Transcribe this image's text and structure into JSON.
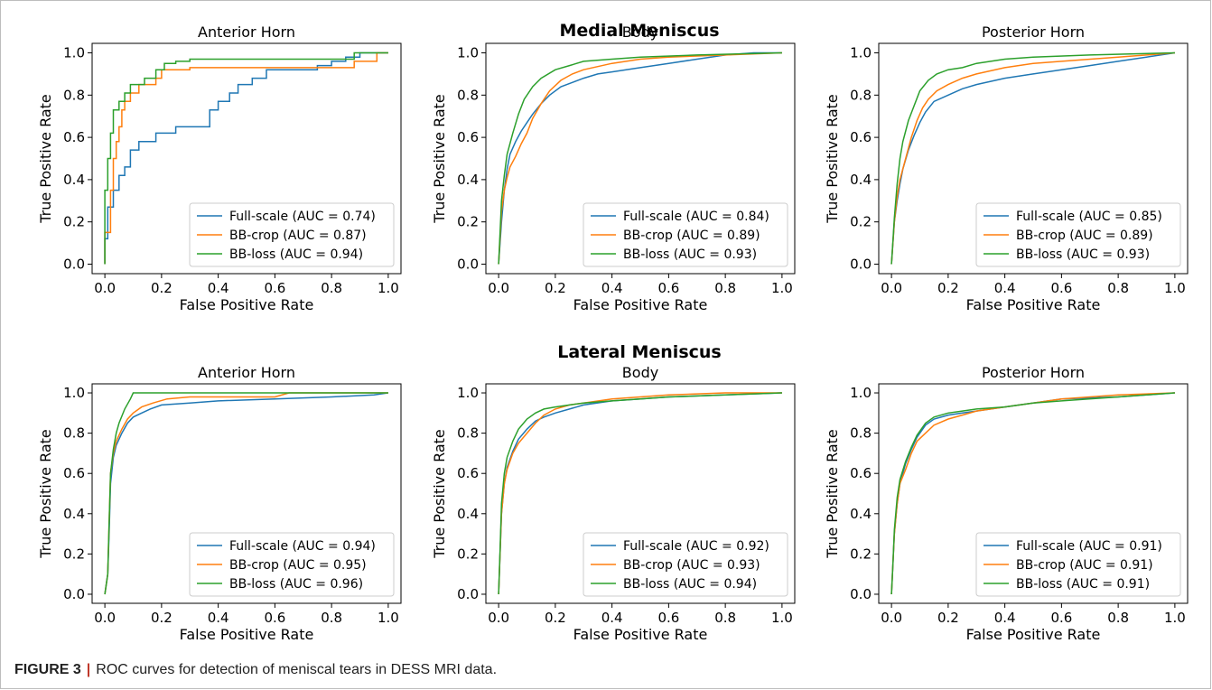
{
  "caption": {
    "label": "FIGURE 3",
    "separator": "|",
    "text": "ROC curves for detection of meniscal tears in DESS MRI data."
  },
  "colors": {
    "full": "#1f77b4",
    "crop": "#ff7f0e",
    "loss": "#2ca02c"
  },
  "chart_data": [
    {
      "group_title": "Medial Meniscus",
      "title": "Anterior Horn",
      "type": "line",
      "xlabel": "False Positive Rate",
      "ylabel": "True Positive Rate",
      "xlim": [
        0,
        1
      ],
      "ylim": [
        0,
        1
      ],
      "grid": false,
      "legend": "lower-right",
      "xticks": [
        "0.0",
        "0.2",
        "0.4",
        "0.6",
        "0.8",
        "1.0"
      ],
      "yticks": [
        "0.0",
        "0.2",
        "0.4",
        "0.6",
        "0.8",
        "1.0"
      ],
      "series": [
        {
          "name": "Full-scale (AUC = 0.74)",
          "color_key": "full",
          "x": [
            0,
            0,
            0.01,
            0.01,
            0.03,
            0.03,
            0.05,
            0.05,
            0.07,
            0.07,
            0.09,
            0.09,
            0.12,
            0.12,
            0.18,
            0.18,
            0.25,
            0.25,
            0.37,
            0.37,
            0.4,
            0.4,
            0.44,
            0.44,
            0.47,
            0.47,
            0.52,
            0.52,
            0.57,
            0.57,
            0.75,
            0.75,
            0.8,
            0.8,
            0.85,
            0.85,
            0.9,
            0.9,
            0.96,
            1.0
          ],
          "y": [
            0,
            0.12,
            0.12,
            0.27,
            0.27,
            0.35,
            0.35,
            0.42,
            0.42,
            0.46,
            0.46,
            0.54,
            0.54,
            0.58,
            0.58,
            0.62,
            0.62,
            0.65,
            0.65,
            0.73,
            0.73,
            0.77,
            0.77,
            0.81,
            0.81,
            0.85,
            0.85,
            0.88,
            0.88,
            0.92,
            0.92,
            0.94,
            0.94,
            0.96,
            0.96,
            0.98,
            0.98,
            1.0,
            1.0,
            1.0
          ]
        },
        {
          "name": "BB-crop (AUC = 0.87)",
          "color_key": "crop",
          "x": [
            0,
            0,
            0.02,
            0.02,
            0.03,
            0.03,
            0.04,
            0.04,
            0.05,
            0.05,
            0.06,
            0.06,
            0.07,
            0.07,
            0.09,
            0.09,
            0.12,
            0.12,
            0.18,
            0.18,
            0.2,
            0.2,
            0.3,
            0.3,
            0.88,
            0.88,
            0.96,
            0.96,
            1.0
          ],
          "y": [
            0,
            0.15,
            0.15,
            0.35,
            0.35,
            0.5,
            0.5,
            0.58,
            0.58,
            0.65,
            0.65,
            0.73,
            0.73,
            0.77,
            0.77,
            0.81,
            0.81,
            0.85,
            0.85,
            0.88,
            0.88,
            0.92,
            0.92,
            0.93,
            0.93,
            0.96,
            0.96,
            1.0,
            1.0
          ]
        },
        {
          "name": "BB-loss (AUC = 0.94)",
          "color_key": "loss",
          "x": [
            0,
            0,
            0.01,
            0.01,
            0.02,
            0.02,
            0.03,
            0.03,
            0.05,
            0.05,
            0.07,
            0.07,
            0.09,
            0.09,
            0.14,
            0.14,
            0.18,
            0.18,
            0.21,
            0.21,
            0.25,
            0.25,
            0.28,
            0.28,
            0.3,
            0.3,
            0.38,
            0.38,
            0.88,
            0.88,
            1.0
          ],
          "y": [
            0,
            0.35,
            0.35,
            0.5,
            0.5,
            0.62,
            0.62,
            0.73,
            0.73,
            0.77,
            0.77,
            0.81,
            0.81,
            0.85,
            0.85,
            0.88,
            0.88,
            0.92,
            0.92,
            0.95,
            0.95,
            0.96,
            0.96,
            0.96,
            0.96,
            0.97,
            0.97,
            0.97,
            0.97,
            1.0,
            1.0
          ]
        }
      ]
    },
    {
      "group_title": "Medial Meniscus",
      "title": "Body",
      "type": "line",
      "xlabel": "False Positive Rate",
      "ylabel": "True Positive Rate",
      "xlim": [
        0,
        1
      ],
      "ylim": [
        0,
        1
      ],
      "grid": false,
      "legend": "lower-right",
      "xticks": [
        "0.0",
        "0.2",
        "0.4",
        "0.6",
        "0.8",
        "1.0"
      ],
      "yticks": [
        "0.0",
        "0.2",
        "0.4",
        "0.6",
        "0.8",
        "1.0"
      ],
      "series": [
        {
          "name": "Full-scale (AUC = 0.84)",
          "color_key": "full",
          "x": [
            0,
            0.01,
            0.02,
            0.03,
            0.04,
            0.06,
            0.08,
            0.1,
            0.12,
            0.15,
            0.18,
            0.22,
            0.26,
            0.3,
            0.35,
            0.4,
            0.5,
            0.6,
            0.7,
            0.8,
            0.9,
            1.0
          ],
          "y": [
            0,
            0.2,
            0.35,
            0.45,
            0.52,
            0.58,
            0.63,
            0.67,
            0.71,
            0.76,
            0.8,
            0.84,
            0.86,
            0.88,
            0.9,
            0.91,
            0.93,
            0.95,
            0.97,
            0.99,
            1.0,
            1.0
          ]
        },
        {
          "name": "BB-crop (AUC = 0.89)",
          "color_key": "crop",
          "x": [
            0,
            0.01,
            0.02,
            0.03,
            0.04,
            0.06,
            0.08,
            0.1,
            0.12,
            0.15,
            0.18,
            0.22,
            0.26,
            0.3,
            0.4,
            0.5,
            0.6,
            0.8,
            1.0
          ],
          "y": [
            0,
            0.25,
            0.35,
            0.41,
            0.46,
            0.51,
            0.57,
            0.62,
            0.69,
            0.76,
            0.82,
            0.87,
            0.9,
            0.92,
            0.95,
            0.97,
            0.98,
            0.99,
            1.0
          ]
        },
        {
          "name": "BB-loss (AUC = 0.93)",
          "color_key": "loss",
          "x": [
            0,
            0.01,
            0.02,
            0.03,
            0.05,
            0.07,
            0.09,
            0.12,
            0.15,
            0.2,
            0.25,
            0.3,
            0.4,
            0.5,
            0.7,
            1.0
          ],
          "y": [
            0,
            0.3,
            0.42,
            0.52,
            0.62,
            0.71,
            0.78,
            0.84,
            0.88,
            0.92,
            0.94,
            0.96,
            0.97,
            0.98,
            0.99,
            1.0
          ]
        }
      ]
    },
    {
      "group_title": "Medial Meniscus",
      "title": "Posterior Horn",
      "type": "line",
      "xlabel": "False Positive Rate",
      "ylabel": "True Positive Rate",
      "xlim": [
        0,
        1
      ],
      "ylim": [
        0,
        1
      ],
      "grid": false,
      "legend": "lower-right",
      "xticks": [
        "0.0",
        "0.2",
        "0.4",
        "0.6",
        "0.8",
        "1.0"
      ],
      "yticks": [
        "0.0",
        "0.2",
        "0.4",
        "0.6",
        "0.8",
        "1.0"
      ],
      "series": [
        {
          "name": "Full-scale (AUC = 0.85)",
          "color_key": "full",
          "x": [
            0,
            0.01,
            0.02,
            0.03,
            0.04,
            0.06,
            0.08,
            0.1,
            0.12,
            0.15,
            0.2,
            0.25,
            0.3,
            0.4,
            0.5,
            0.6,
            0.7,
            0.8,
            0.9,
            1.0
          ],
          "y": [
            0,
            0.2,
            0.3,
            0.38,
            0.45,
            0.54,
            0.61,
            0.67,
            0.72,
            0.77,
            0.8,
            0.83,
            0.85,
            0.88,
            0.9,
            0.92,
            0.94,
            0.96,
            0.98,
            1.0
          ]
        },
        {
          "name": "BB-crop (AUC = 0.89)",
          "color_key": "crop",
          "x": [
            0,
            0.01,
            0.02,
            0.03,
            0.05,
            0.07,
            0.09,
            0.11,
            0.13,
            0.16,
            0.2,
            0.25,
            0.3,
            0.4,
            0.5,
            0.6,
            0.8,
            1.0
          ],
          "y": [
            0,
            0.2,
            0.32,
            0.4,
            0.5,
            0.6,
            0.68,
            0.74,
            0.78,
            0.82,
            0.85,
            0.88,
            0.9,
            0.93,
            0.95,
            0.96,
            0.98,
            1.0
          ]
        },
        {
          "name": "BB-loss (AUC = 0.93)",
          "color_key": "loss",
          "x": [
            0,
            0.01,
            0.02,
            0.03,
            0.04,
            0.06,
            0.08,
            0.1,
            0.13,
            0.16,
            0.2,
            0.25,
            0.3,
            0.4,
            0.5,
            0.7,
            1.0
          ],
          "y": [
            0,
            0.22,
            0.38,
            0.5,
            0.58,
            0.68,
            0.75,
            0.82,
            0.87,
            0.9,
            0.92,
            0.93,
            0.95,
            0.97,
            0.98,
            0.99,
            1.0
          ]
        }
      ]
    },
    {
      "group_title": "Lateral Meniscus",
      "title": "Anterior Horn",
      "type": "line",
      "xlabel": "False Positive Rate",
      "ylabel": "True Positive Rate",
      "xlim": [
        0,
        1
      ],
      "ylim": [
        0,
        1
      ],
      "grid": false,
      "legend": "lower-right",
      "xticks": [
        "0.0",
        "0.2",
        "0.4",
        "0.6",
        "0.8",
        "1.0"
      ],
      "yticks": [
        "0.0",
        "0.2",
        "0.4",
        "0.6",
        "0.8",
        "1.0"
      ],
      "series": [
        {
          "name": "Full-scale (AUC = 0.94)",
          "color_key": "full",
          "x": [
            0,
            0.01,
            0.015,
            0.02,
            0.03,
            0.04,
            0.06,
            0.08,
            0.1,
            0.13,
            0.16,
            0.2,
            0.3,
            0.4,
            0.6,
            0.8,
            0.95,
            1.0
          ],
          "y": [
            0,
            0.1,
            0.3,
            0.55,
            0.68,
            0.74,
            0.8,
            0.85,
            0.88,
            0.9,
            0.92,
            0.94,
            0.95,
            0.96,
            0.97,
            0.98,
            0.99,
            1.0
          ]
        },
        {
          "name": "BB-crop (AUC = 0.95)",
          "color_key": "crop",
          "x": [
            0,
            0.01,
            0.015,
            0.02,
            0.03,
            0.04,
            0.06,
            0.08,
            0.1,
            0.13,
            0.17,
            0.22,
            0.3,
            0.4,
            0.6,
            0.65,
            0.95,
            1.0
          ],
          "y": [
            0,
            0.1,
            0.35,
            0.6,
            0.7,
            0.76,
            0.82,
            0.87,
            0.9,
            0.93,
            0.95,
            0.97,
            0.98,
            0.98,
            0.98,
            1.0,
            1.0,
            1.0
          ]
        },
        {
          "name": "BB-loss (AUC = 0.96)",
          "color_key": "loss",
          "x": [
            0,
            0.01,
            0.015,
            0.02,
            0.03,
            0.04,
            0.05,
            0.07,
            0.09,
            0.1,
            0.2,
            0.4,
            1.0
          ],
          "y": [
            0,
            0.1,
            0.35,
            0.6,
            0.72,
            0.8,
            0.85,
            0.92,
            0.97,
            1.0,
            1.0,
            1.0,
            1.0
          ]
        }
      ]
    },
    {
      "group_title": "Lateral Meniscus",
      "title": "Body",
      "type": "line",
      "xlabel": "False Positive Rate",
      "ylabel": "True Positive Rate",
      "xlim": [
        0,
        1
      ],
      "ylim": [
        0,
        1
      ],
      "grid": false,
      "legend": "lower-right",
      "xticks": [
        "0.0",
        "0.2",
        "0.4",
        "0.6",
        "0.8",
        "1.0"
      ],
      "yticks": [
        "0.0",
        "0.2",
        "0.4",
        "0.6",
        "0.8",
        "1.0"
      ],
      "series": [
        {
          "name": "Full-scale (AUC = 0.92)",
          "color_key": "full",
          "x": [
            0,
            0.005,
            0.01,
            0.02,
            0.03,
            0.05,
            0.07,
            0.1,
            0.13,
            0.16,
            0.2,
            0.25,
            0.3,
            0.4,
            0.5,
            0.6,
            0.8,
            1.0
          ],
          "y": [
            0,
            0.2,
            0.4,
            0.55,
            0.63,
            0.71,
            0.77,
            0.82,
            0.86,
            0.88,
            0.9,
            0.92,
            0.94,
            0.96,
            0.97,
            0.98,
            0.99,
            1.0
          ]
        },
        {
          "name": "BB-crop (AUC = 0.93)",
          "color_key": "crop",
          "x": [
            0,
            0.005,
            0.01,
            0.02,
            0.03,
            0.05,
            0.07,
            0.1,
            0.13,
            0.16,
            0.2,
            0.25,
            0.3,
            0.4,
            0.5,
            0.6,
            0.8,
            1.0
          ],
          "y": [
            0,
            0.2,
            0.4,
            0.55,
            0.62,
            0.7,
            0.75,
            0.8,
            0.85,
            0.89,
            0.92,
            0.94,
            0.95,
            0.97,
            0.98,
            0.99,
            1.0,
            1.0
          ]
        },
        {
          "name": "BB-loss (AUC = 0.94)",
          "color_key": "loss",
          "x": [
            0,
            0.005,
            0.01,
            0.02,
            0.03,
            0.05,
            0.07,
            0.1,
            0.13,
            0.16,
            0.2,
            0.25,
            0.3,
            0.4,
            0.5,
            0.6,
            0.8,
            1.0
          ],
          "y": [
            0,
            0.22,
            0.45,
            0.6,
            0.68,
            0.76,
            0.82,
            0.87,
            0.9,
            0.92,
            0.93,
            0.94,
            0.95,
            0.96,
            0.97,
            0.98,
            0.99,
            1.0
          ]
        }
      ]
    },
    {
      "group_title": "Lateral Meniscus",
      "title": "Posterior Horn",
      "type": "line",
      "xlabel": "False Positive Rate",
      "ylabel": "True Positive Rate",
      "xlim": [
        0,
        1
      ],
      "ylim": [
        0,
        1
      ],
      "grid": false,
      "legend": "lower-right",
      "xticks": [
        "0.0",
        "0.2",
        "0.4",
        "0.6",
        "0.8",
        "1.0"
      ],
      "yticks": [
        "0.0",
        "0.2",
        "0.4",
        "0.6",
        "0.8",
        "1.0"
      ],
      "series": [
        {
          "name": "Full-scale (AUC = 0.91)",
          "color_key": "full",
          "x": [
            0,
            0.005,
            0.01,
            0.02,
            0.03,
            0.05,
            0.07,
            0.09,
            0.12,
            0.15,
            0.2,
            0.25,
            0.3,
            0.4,
            0.5,
            0.6,
            0.8,
            1.0
          ],
          "y": [
            0,
            0.15,
            0.3,
            0.45,
            0.55,
            0.65,
            0.72,
            0.78,
            0.84,
            0.87,
            0.89,
            0.9,
            0.91,
            0.93,
            0.95,
            0.97,
            0.98,
            1.0
          ]
        },
        {
          "name": "BB-crop (AUC = 0.91)",
          "color_key": "crop",
          "x": [
            0,
            0.005,
            0.01,
            0.02,
            0.03,
            0.05,
            0.07,
            0.09,
            0.12,
            0.15,
            0.2,
            0.25,
            0.3,
            0.4,
            0.5,
            0.6,
            0.8,
            1.0
          ],
          "y": [
            0,
            0.15,
            0.3,
            0.45,
            0.55,
            0.62,
            0.7,
            0.76,
            0.8,
            0.84,
            0.87,
            0.89,
            0.91,
            0.93,
            0.95,
            0.97,
            0.99,
            1.0
          ]
        },
        {
          "name": "BB-loss (AUC = 0.91)",
          "color_key": "loss",
          "x": [
            0,
            0.005,
            0.01,
            0.02,
            0.03,
            0.05,
            0.07,
            0.09,
            0.12,
            0.15,
            0.2,
            0.25,
            0.3,
            0.4,
            0.5,
            0.6,
            0.8,
            1.0
          ],
          "y": [
            0,
            0.15,
            0.32,
            0.48,
            0.57,
            0.66,
            0.73,
            0.79,
            0.85,
            0.88,
            0.9,
            0.91,
            0.92,
            0.93,
            0.95,
            0.96,
            0.98,
            1.0
          ]
        }
      ]
    }
  ]
}
